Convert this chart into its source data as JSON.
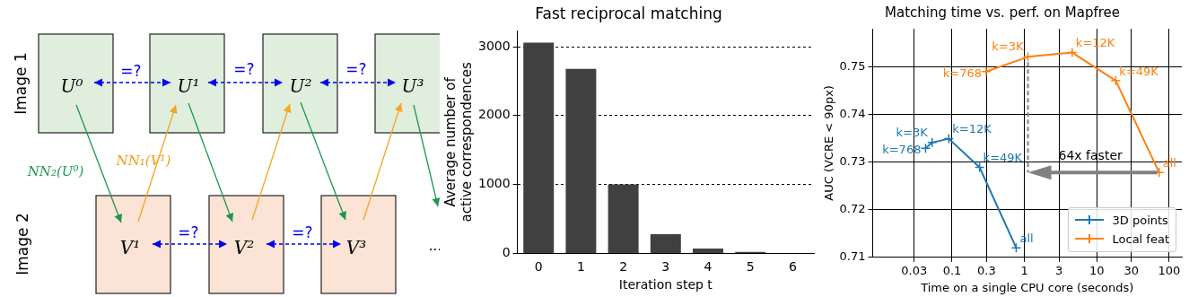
{
  "chart_data": [
    {
      "type": "other",
      "annotations": [
        "Image 1",
        "Image 2",
        "U⁰",
        "U¹",
        "U²",
        "U³",
        "V¹",
        "V²",
        "V³",
        "=?",
        "=?",
        "=?",
        "=?",
        "=?",
        "NN₂(U⁰)",
        "NN₁(V¹)",
        "..."
      ]
    },
    {
      "type": "bar",
      "title": "Fast reciprocal matching",
      "xlabel": "Iteration step t",
      "ylabel": "Average number of\nactive correspondences",
      "categories": [
        "0",
        "1",
        "2",
        "3",
        "4",
        "5",
        "6"
      ],
      "values": [
        3060,
        2680,
        1000,
        280,
        70,
        20,
        5
      ],
      "color": "#404040",
      "ylim": [
        0,
        3230
      ],
      "yticks": [
        0,
        1000,
        2000,
        3000
      ],
      "grid": "y"
    },
    {
      "type": "line",
      "title": "Matching time vs. perf. on Mapfree",
      "xlabel": "Time on a single CPU core (seconds)",
      "ylabel": "AUC (VCRE < 90px)",
      "series": [
        {
          "name": "3D points",
          "color": "#1f77b4",
          "x": [
            0.043,
            0.053,
            0.09,
            0.24,
            0.77
          ],
          "values": [
            0.7329,
            0.7341,
            0.7349,
            0.7289,
            0.712
          ]
        },
        {
          "name": "Local feat",
          "color": "#ff7f0e",
          "x": [
            0.296,
            1.12,
            4.58,
            18.3,
            73
          ],
          "values": [
            0.749,
            0.7521,
            0.753,
            0.7471,
            0.7278
          ]
        }
      ],
      "log": "x",
      "xlim": [
        0.008,
        150
      ],
      "xticks": [
        0.03,
        0.1,
        0.3,
        1,
        3,
        10,
        30,
        100
      ],
      "ylim": [
        0.71,
        0.758
      ],
      "yticks": [
        0.71,
        0.72,
        0.73,
        0.74,
        0.75
      ],
      "grid": true,
      "marker": "cross",
      "legend": "bottom right",
      "annotations": [
        {
          "text": "k=768",
          "x": 0.043,
          "y": 0.7329
        },
        {
          "text": "k=3K",
          "x": 0.053,
          "y": 0.7341
        },
        {
          "text": "k=12K",
          "x": 0.09,
          "y": 0.7349
        },
        {
          "text": "k=49K",
          "x": 0.24,
          "y": 0.7289
        },
        {
          "text": "all",
          "x": 0.77,
          "y": 0.712
        },
        {
          "text": "k=768",
          "x": 0.296,
          "y": 0.749
        },
        {
          "text": "k=3K",
          "x": 1.12,
          "y": 0.7521
        },
        {
          "text": "k=12K",
          "x": 4.58,
          "y": 0.753
        },
        {
          "text": "k=49K",
          "x": 18.3,
          "y": 0.7471
        },
        {
          "text": "all",
          "x": 73,
          "y": 0.7278
        },
        {
          "text": "64x faster",
          "x": 73,
          "y": 0.7278
        }
      ]
    }
  ]
}
